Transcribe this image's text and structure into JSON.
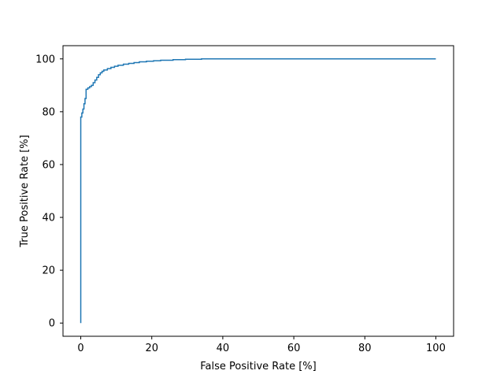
{
  "chart_data": {
    "type": "line",
    "title": "",
    "xlabel": "False Positive Rate [%]",
    "ylabel": "True Positive Rate [%]",
    "xlim": [
      -5,
      105
    ],
    "ylim": [
      -5,
      105
    ],
    "xticks": [
      0,
      20,
      40,
      60,
      80,
      100
    ],
    "yticks": [
      0,
      20,
      40,
      60,
      80,
      100
    ],
    "xtick_labels": [
      "0",
      "20",
      "40",
      "60",
      "80",
      "100"
    ],
    "ytick_labels": [
      "0",
      "20",
      "40",
      "60",
      "80",
      "100"
    ],
    "grid": false,
    "legend": "none",
    "line_style": "step",
    "series": [
      {
        "color": "#1f77b4",
        "x": [
          0,
          0,
          0.3,
          0.3,
          0.6,
          0.6,
          0.9,
          0.9,
          1.2,
          1.2,
          1.5,
          1.5,
          2,
          2,
          2.5,
          2.5,
          3,
          3,
          3.5,
          3.5,
          4,
          4,
          4.5,
          4.5,
          5,
          5,
          5.5,
          5.5,
          6,
          6,
          6.5,
          6.5,
          7.5,
          7.5,
          8.5,
          8.5,
          9.5,
          9.5,
          10.5,
          10.5,
          12,
          12,
          13.5,
          13.5,
          15,
          15,
          16.5,
          16.5,
          18.5,
          18.5,
          20.5,
          20.5,
          22.5,
          22.5,
          26,
          26,
          29.5,
          29.5,
          34,
          34,
          100
        ],
        "y": [
          0,
          78,
          78,
          79.5,
          79.5,
          81,
          81,
          83,
          83,
          85,
          85,
          88.5,
          88.5,
          89,
          89,
          89.5,
          89.5,
          90,
          90,
          91,
          91,
          92,
          92,
          93,
          93,
          94,
          94,
          94.7,
          94.7,
          95.3,
          95.3,
          95.8,
          95.8,
          96.3,
          96.3,
          96.8,
          96.8,
          97.2,
          97.2,
          97.6,
          97.6,
          98,
          98,
          98.3,
          98.3,
          98.6,
          98.6,
          98.9,
          98.9,
          99.1,
          99.1,
          99.3,
          99.3,
          99.5,
          99.5,
          99.7,
          99.7,
          99.85,
          99.85,
          100,
          100
        ]
      }
    ]
  }
}
